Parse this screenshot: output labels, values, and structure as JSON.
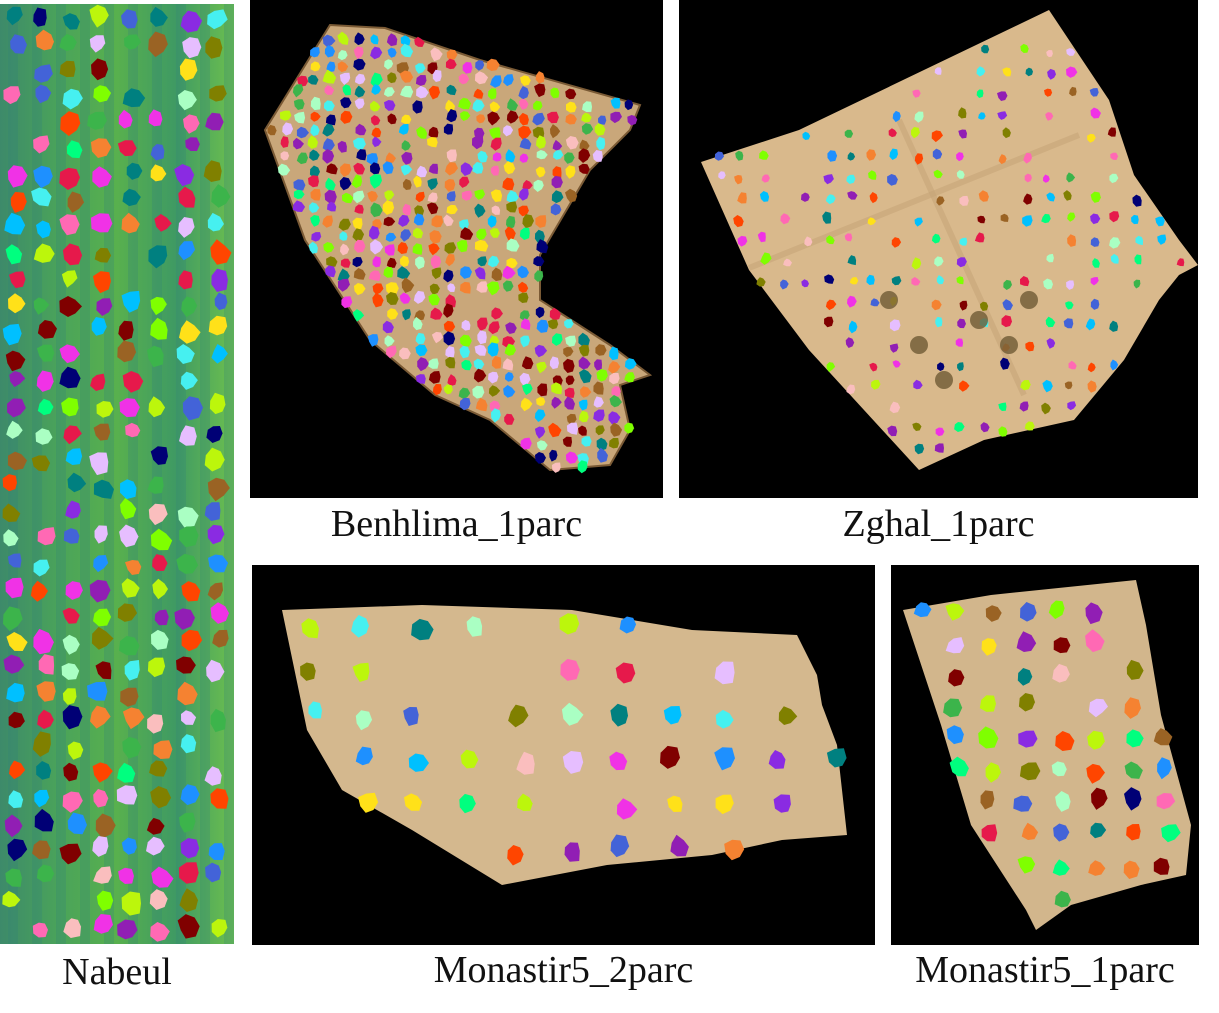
{
  "figure": {
    "panels": [
      {
        "id": "nabeul",
        "label": "Nabeul",
        "background": "#3f9a5c"
      },
      {
        "id": "benhlima",
        "label": "Benhlima_1parc",
        "background": "#000000",
        "field_color": "#c9a77a"
      },
      {
        "id": "zghal",
        "label": "Zghal_1parc",
        "background": "#000000",
        "field_color": "#d9b98c"
      },
      {
        "id": "monastir5_2parc",
        "label": "Monastir5_2parc",
        "background": "#000000",
        "field_color": "#d4b88e"
      },
      {
        "id": "monastir5_1parc",
        "label": "Monastir5_1parc",
        "background": "#000000",
        "field_color": "#d2b68c"
      }
    ],
    "instance_palette": [
      "#e6194b",
      "#3cb44b",
      "#ffe119",
      "#4363d8",
      "#f58231",
      "#911eb4",
      "#46f0f0",
      "#f032e6",
      "#bcf60c",
      "#fabebe",
      "#008080",
      "#e6beff",
      "#9a6324",
      "#800000",
      "#aaffc3",
      "#808000",
      "#000075",
      "#ff69b4",
      "#00c0ff",
      "#7fff00",
      "#ff4500",
      "#1e90ff",
      "#8a2be2",
      "#00ff7f"
    ]
  }
}
